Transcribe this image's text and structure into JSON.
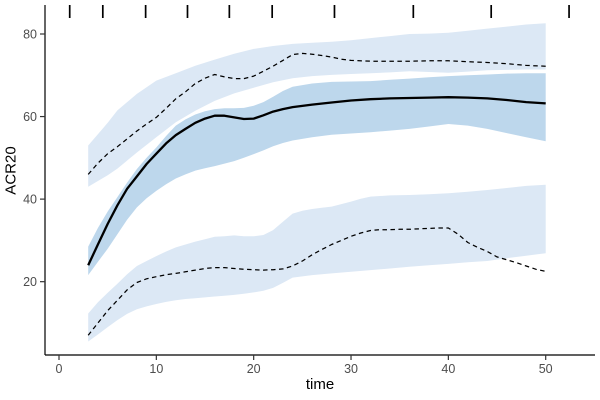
{
  "chart_data": {
    "type": "line",
    "title": "",
    "xlabel": "time",
    "ylabel": "ACR20",
    "x_ticks": [
      0,
      10,
      20,
      30,
      40,
      50
    ],
    "y_ticks": [
      20,
      40,
      60,
      80
    ],
    "xlim": [
      -1.4,
      55.1
    ],
    "ylim": [
      2.2,
      87.0
    ],
    "grid": false,
    "legend": "none",
    "theme": "white background, black x and y axis lines, no gridlines",
    "rug_marks_top_x": [
      1.1,
      4.5,
      8.9,
      13.2,
      17.5,
      21.9,
      28.3,
      36.4,
      44.4,
      52.4
    ],
    "colors": {
      "band_light": "#dce8f5",
      "band_dark": "#bdd7ec",
      "line": "#000000",
      "tick_text": "#4d4d4d",
      "axis_line": "#000000"
    },
    "series": [
      {
        "name": "upper-dashed-line",
        "style": "dashed",
        "points": [
          [
            3,
            46
          ],
          [
            4,
            48.7
          ],
          [
            5,
            51
          ],
          [
            6,
            52.7
          ],
          [
            7,
            54.6
          ],
          [
            8,
            56.5
          ],
          [
            9,
            58.2
          ],
          [
            10,
            59.8
          ],
          [
            11,
            62
          ],
          [
            12,
            64.3
          ],
          [
            13,
            66
          ],
          [
            14,
            68
          ],
          [
            15,
            69.3
          ],
          [
            16,
            70.2
          ],
          [
            17,
            69.6
          ],
          [
            18,
            69.2
          ],
          [
            19,
            69.2
          ],
          [
            20,
            69.8
          ],
          [
            21,
            71
          ],
          [
            22,
            72.2
          ],
          [
            23,
            73.6
          ],
          [
            24,
            75
          ],
          [
            25,
            75.3
          ],
          [
            26,
            75.1
          ],
          [
            27,
            74.8
          ],
          [
            28,
            74.4
          ],
          [
            29,
            73.9
          ],
          [
            30,
            73.6
          ],
          [
            32,
            73.4
          ],
          [
            34,
            73.4
          ],
          [
            36,
            73.4
          ],
          [
            38,
            73.5
          ],
          [
            40,
            73.5
          ],
          [
            42,
            73.3
          ],
          [
            44,
            73.1
          ],
          [
            46,
            72.8
          ],
          [
            48,
            72.4
          ],
          [
            50,
            72.2
          ]
        ]
      },
      {
        "name": "mean-solid-line",
        "style": "solid",
        "points": [
          [
            3,
            24
          ],
          [
            4,
            29
          ],
          [
            5,
            34
          ],
          [
            6,
            38.5
          ],
          [
            7,
            42.5
          ],
          [
            8,
            45.5
          ],
          [
            9,
            48.5
          ],
          [
            10,
            51
          ],
          [
            11,
            53.5
          ],
          [
            12,
            55.5
          ],
          [
            13,
            57
          ],
          [
            14,
            58.5
          ],
          [
            15,
            59.5
          ],
          [
            16,
            60.2
          ],
          [
            17,
            60.2
          ],
          [
            18,
            59.8
          ],
          [
            19,
            59.4
          ],
          [
            20,
            59.5
          ],
          [
            21,
            60.3
          ],
          [
            22,
            61.2
          ],
          [
            23,
            61.8
          ],
          [
            24,
            62.3
          ],
          [
            26,
            62.9
          ],
          [
            28,
            63.4
          ],
          [
            30,
            63.9
          ],
          [
            32,
            64.2
          ],
          [
            34,
            64.4
          ],
          [
            36,
            64.5
          ],
          [
            38,
            64.6
          ],
          [
            40,
            64.7
          ],
          [
            42,
            64.6
          ],
          [
            44,
            64.4
          ],
          [
            46,
            64
          ],
          [
            48,
            63.5
          ],
          [
            50,
            63.2
          ]
        ]
      },
      {
        "name": "lower-dashed-line",
        "style": "dashed",
        "points": [
          [
            3,
            7
          ],
          [
            4,
            10
          ],
          [
            5,
            13
          ],
          [
            6,
            15.5
          ],
          [
            7,
            18
          ],
          [
            8,
            19.8
          ],
          [
            9,
            20.7
          ],
          [
            10,
            21.2
          ],
          [
            11,
            21.7
          ],
          [
            12,
            22
          ],
          [
            13,
            22.4
          ],
          [
            14,
            22.8
          ],
          [
            15,
            23.2
          ],
          [
            16,
            23.4
          ],
          [
            17,
            23.4
          ],
          [
            18,
            23.2
          ],
          [
            19,
            23
          ],
          [
            20,
            22.9
          ],
          [
            21,
            22.8
          ],
          [
            22,
            22.9
          ],
          [
            23,
            23.1
          ],
          [
            24,
            23.8
          ],
          [
            25,
            25
          ],
          [
            26,
            26.5
          ],
          [
            27,
            27.8
          ],
          [
            28,
            29
          ],
          [
            29,
            30
          ],
          [
            30,
            31
          ],
          [
            31,
            31.8
          ],
          [
            32,
            32.4
          ],
          [
            33,
            32.6
          ],
          [
            34,
            32.6
          ],
          [
            35,
            32.7
          ],
          [
            36,
            32.7
          ],
          [
            37,
            32.8
          ],
          [
            38,
            32.9
          ],
          [
            39,
            33
          ],
          [
            40,
            33
          ],
          [
            41,
            31.5
          ],
          [
            42,
            29.5
          ],
          [
            43,
            28.3
          ],
          [
            44,
            27.3
          ],
          [
            45,
            26
          ],
          [
            46,
            25.3
          ],
          [
            47,
            24.6
          ],
          [
            48,
            23.8
          ],
          [
            49,
            23
          ],
          [
            50,
            22.5
          ]
        ]
      }
    ],
    "bands": [
      {
        "name": "upper-confidence-band",
        "color": "light",
        "top": [
          [
            3,
            53
          ],
          [
            5,
            58.5
          ],
          [
            6,
            61.5
          ],
          [
            8,
            65.5
          ],
          [
            10,
            68.7
          ],
          [
            12,
            70.5
          ],
          [
            14,
            72.3
          ],
          [
            16,
            73.8
          ],
          [
            18,
            75.2
          ],
          [
            20,
            76.4
          ],
          [
            22,
            77.1
          ],
          [
            24,
            77.6
          ],
          [
            26,
            77.9
          ],
          [
            28,
            78.1
          ],
          [
            30,
            78.5
          ],
          [
            32,
            79
          ],
          [
            34,
            79.5
          ],
          [
            36,
            80
          ],
          [
            38,
            80.1
          ],
          [
            40,
            80.3
          ],
          [
            42,
            80.8
          ],
          [
            44,
            81.3
          ],
          [
            46,
            81.8
          ],
          [
            48,
            82.3
          ],
          [
            50,
            82.6
          ]
        ],
        "bottom": [
          [
            3,
            43
          ],
          [
            5,
            45.8
          ],
          [
            6,
            47.4
          ],
          [
            8,
            51.3
          ],
          [
            10,
            55
          ],
          [
            12,
            58.6
          ],
          [
            14,
            61.4
          ],
          [
            16,
            63.8
          ],
          [
            18,
            65.6
          ],
          [
            20,
            67
          ],
          [
            22,
            68.3
          ],
          [
            24,
            69.3
          ],
          [
            26,
            69.8
          ],
          [
            28,
            70.1
          ],
          [
            30,
            70.3
          ],
          [
            32,
            70.5
          ],
          [
            34,
            70.7
          ],
          [
            36,
            71
          ],
          [
            38,
            70.8
          ],
          [
            40,
            70.6
          ],
          [
            42,
            70.9
          ],
          [
            44,
            71.2
          ],
          [
            46,
            71.3
          ],
          [
            48,
            71.4
          ],
          [
            50,
            71.4
          ]
        ]
      },
      {
        "name": "middle-confidence-band",
        "color": "dark",
        "top": [
          [
            3,
            28.5
          ],
          [
            4,
            33
          ],
          [
            5,
            37
          ],
          [
            6,
            40.5
          ],
          [
            7,
            44
          ],
          [
            8,
            47.3
          ],
          [
            9,
            50
          ],
          [
            10,
            52.5
          ],
          [
            11,
            55.3
          ],
          [
            12,
            57.8
          ],
          [
            13,
            59.3
          ],
          [
            14,
            60.5
          ],
          [
            15,
            61.3
          ],
          [
            16,
            61.8
          ],
          [
            17,
            62
          ],
          [
            18,
            62
          ],
          [
            19,
            62.1
          ],
          [
            20,
            62.6
          ],
          [
            21,
            63.5
          ],
          [
            22,
            64.8
          ],
          [
            23,
            66.2
          ],
          [
            24,
            67.2
          ],
          [
            26,
            68
          ],
          [
            28,
            68.4
          ],
          [
            30,
            68.5
          ],
          [
            32,
            68.6
          ],
          [
            34,
            68.9
          ],
          [
            36,
            69.2
          ],
          [
            38,
            69.5
          ],
          [
            40,
            69.8
          ],
          [
            42,
            70
          ],
          [
            44,
            70.2
          ],
          [
            46,
            70.4
          ],
          [
            48,
            70.5
          ],
          [
            50,
            70.5
          ]
        ],
        "bottom": [
          [
            3,
            21.6
          ],
          [
            4,
            24.8
          ],
          [
            5,
            28
          ],
          [
            6,
            31.5
          ],
          [
            7,
            35
          ],
          [
            8,
            38
          ],
          [
            9,
            40.2
          ],
          [
            10,
            42
          ],
          [
            11,
            43.6
          ],
          [
            12,
            45
          ],
          [
            13,
            46
          ],
          [
            14,
            46.9
          ],
          [
            15,
            47.5
          ],
          [
            16,
            48
          ],
          [
            17,
            48.6
          ],
          [
            18,
            49.2
          ],
          [
            19,
            50
          ],
          [
            20,
            50.9
          ],
          [
            21,
            51.8
          ],
          [
            22,
            52.8
          ],
          [
            23,
            53.6
          ],
          [
            24,
            54.2
          ],
          [
            26,
            55
          ],
          [
            28,
            55.6
          ],
          [
            30,
            55.9
          ],
          [
            32,
            56.2
          ],
          [
            34,
            56.6
          ],
          [
            36,
            57
          ],
          [
            38,
            57.6
          ],
          [
            40,
            58.2
          ],
          [
            42,
            57.8
          ],
          [
            44,
            57
          ],
          [
            46,
            56
          ],
          [
            48,
            55
          ],
          [
            50,
            54
          ]
        ]
      },
      {
        "name": "lower-confidence-band",
        "color": "light",
        "top": [
          [
            3,
            12.3
          ],
          [
            4,
            15
          ],
          [
            5,
            17.3
          ],
          [
            6,
            19.5
          ],
          [
            7,
            21.8
          ],
          [
            8,
            23.8
          ],
          [
            9,
            25
          ],
          [
            10,
            26.2
          ],
          [
            11,
            27.3
          ],
          [
            12,
            28.3
          ],
          [
            13,
            29
          ],
          [
            14,
            29.7
          ],
          [
            15,
            30.3
          ],
          [
            16,
            30.9
          ],
          [
            17,
            31
          ],
          [
            18,
            31.2
          ],
          [
            19,
            31
          ],
          [
            20,
            31
          ],
          [
            21,
            31.3
          ],
          [
            22,
            32.5
          ],
          [
            23,
            34.5
          ],
          [
            24,
            36.5
          ],
          [
            25,
            37.2
          ],
          [
            26,
            37.6
          ],
          [
            27,
            37.9
          ],
          [
            28,
            38.2
          ],
          [
            29,
            38.8
          ],
          [
            30,
            39.4
          ],
          [
            31,
            40.1
          ],
          [
            32,
            40.6
          ],
          [
            34,
            40.9
          ],
          [
            36,
            41
          ],
          [
            38,
            41.2
          ],
          [
            40,
            41.4
          ],
          [
            42,
            41.8
          ],
          [
            44,
            42.2
          ],
          [
            46,
            42.7
          ],
          [
            48,
            43.2
          ],
          [
            50,
            43.5
          ]
        ],
        "bottom": [
          [
            3,
            5.5
          ],
          [
            4,
            7.2
          ],
          [
            5,
            9
          ],
          [
            6,
            10.7
          ],
          [
            7,
            12.2
          ],
          [
            8,
            13.3
          ],
          [
            9,
            14
          ],
          [
            10,
            14.6
          ],
          [
            11,
            15.1
          ],
          [
            12,
            15.5
          ],
          [
            13,
            15.8
          ],
          [
            14,
            16
          ],
          [
            15,
            16.2
          ],
          [
            16,
            16.4
          ],
          [
            17,
            16.6
          ],
          [
            18,
            16.8
          ],
          [
            19,
            17.1
          ],
          [
            20,
            17.4
          ],
          [
            21,
            17.8
          ],
          [
            22,
            18.5
          ],
          [
            23,
            19.7
          ],
          [
            24,
            21
          ],
          [
            26,
            21.6
          ],
          [
            28,
            22
          ],
          [
            30,
            22.4
          ],
          [
            32,
            22.8
          ],
          [
            34,
            23.2
          ],
          [
            36,
            23.6
          ],
          [
            38,
            24
          ],
          [
            40,
            24.3
          ],
          [
            42,
            24.7
          ],
          [
            44,
            25
          ],
          [
            46,
            25.7
          ],
          [
            48,
            26.3
          ],
          [
            50,
            26.9
          ]
        ]
      }
    ]
  }
}
